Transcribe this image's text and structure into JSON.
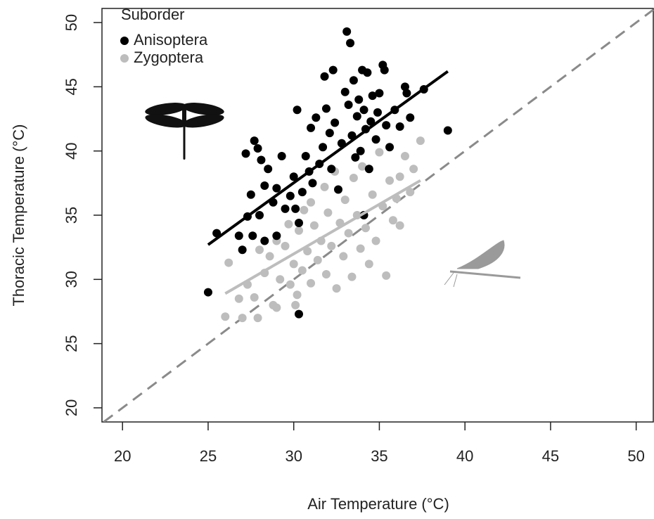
{
  "chart_data": {
    "type": "scatter",
    "x_label": "Air Temperature (°C)",
    "y_label": "Thoracic Temperature (°C)",
    "legend_title": "Suborder",
    "legend": "top-left",
    "xlim": [
      18.8,
      51
    ],
    "ylim": [
      18.9,
      51.1
    ],
    "xticks": [
      20,
      25,
      30,
      35,
      40,
      45,
      50
    ],
    "yticks": [
      20,
      25,
      30,
      35,
      40,
      45,
      50
    ],
    "identity_line": {
      "color": "#8a8a8a",
      "dash": true
    },
    "series": [
      {
        "name": "Anisoptera",
        "color": "#000000",
        "x": [
          25.0,
          25.5,
          26.8,
          27.0,
          27.3,
          27.5,
          27.7,
          27.2,
          27.9,
          28.1,
          28.3,
          28.5,
          27.6,
          28.0,
          28.3,
          28.8,
          29.0,
          29.3,
          29.5,
          29.8,
          30.0,
          30.2,
          30.3,
          30.5,
          30.7,
          30.9,
          31.1,
          31.0,
          31.3,
          31.5,
          31.7,
          31.8,
          31.9,
          32.1,
          32.3,
          32.2,
          32.4,
          32.6,
          32.8,
          33.0,
          33.1,
          33.3,
          33.2,
          33.4,
          33.5,
          33.6,
          33.7,
          33.8,
          33.9,
          34.0,
          34.1,
          34.2,
          34.3,
          34.4,
          34.5,
          34.6,
          34.8,
          34.9,
          35.0,
          35.2,
          35.3,
          35.4,
          35.6,
          35.9,
          36.2,
          36.5,
          36.6,
          36.8,
          37.6,
          39.0,
          30.3,
          34.1,
          30.1,
          29.0
        ],
        "values": [
          29.0,
          33.6,
          33.4,
          32.3,
          34.9,
          36.6,
          40.8,
          39.8,
          40.2,
          39.3,
          37.3,
          38.6,
          33.4,
          35.0,
          33.0,
          36.0,
          37.1,
          39.6,
          35.5,
          36.5,
          38.0,
          43.2,
          34.4,
          36.8,
          39.6,
          38.4,
          37.5,
          41.8,
          42.6,
          39.0,
          40.3,
          45.8,
          43.3,
          41.4,
          46.3,
          38.6,
          42.2,
          37.0,
          40.6,
          44.6,
          49.3,
          48.4,
          43.6,
          41.2,
          45.5,
          39.5,
          42.7,
          44.0,
          40.0,
          46.3,
          43.2,
          41.7,
          46.1,
          38.6,
          42.3,
          44.3,
          40.9,
          43.0,
          44.5,
          46.7,
          46.3,
          42.0,
          40.3,
          43.2,
          41.9,
          45.0,
          44.5,
          42.6,
          44.8,
          41.6,
          27.3,
          35.0,
          35.5,
          33.4
        ],
        "fit": {
          "x": [
            25,
            39
          ],
          "y": [
            32.7,
            46.2
          ]
        }
      },
      {
        "name": "Zygoptera",
        "color": "#bdbdbd",
        "x": [
          26.0,
          26.2,
          26.8,
          27.0,
          27.3,
          27.7,
          27.9,
          28.0,
          28.3,
          28.6,
          28.8,
          29.0,
          29.2,
          29.5,
          29.8,
          29.7,
          30.0,
          30.2,
          30.3,
          30.5,
          30.6,
          30.8,
          31.0,
          31.0,
          31.2,
          31.4,
          31.6,
          31.8,
          31.9,
          32.0,
          32.2,
          32.4,
          32.5,
          32.7,
          32.9,
          33.0,
          33.2,
          33.4,
          33.5,
          33.7,
          33.9,
          34.0,
          34.2,
          34.4,
          34.6,
          34.8,
          35.0,
          35.2,
          35.4,
          35.6,
          35.8,
          36.0,
          36.2,
          36.5,
          36.8,
          37.4,
          37.0,
          36.2,
          30.1,
          29.0
        ],
        "values": [
          27.1,
          31.3,
          28.5,
          27.0,
          29.6,
          28.6,
          27.0,
          32.3,
          30.5,
          31.8,
          28.0,
          33.0,
          30.0,
          32.6,
          29.6,
          34.3,
          31.2,
          28.8,
          33.8,
          30.7,
          35.4,
          32.2,
          29.7,
          36.0,
          34.2,
          31.5,
          33.0,
          37.2,
          30.4,
          35.2,
          32.6,
          38.4,
          29.3,
          34.4,
          31.8,
          36.2,
          33.6,
          30.2,
          37.9,
          35.0,
          32.4,
          38.8,
          34.0,
          31.2,
          36.6,
          33.0,
          39.9,
          35.7,
          30.3,
          37.7,
          34.6,
          36.3,
          38.0,
          39.6,
          36.8,
          40.8,
          38.6,
          34.2,
          28.0,
          27.8
        ],
        "fit": {
          "x": [
            26,
            37.4
          ],
          "y": [
            28.9,
            37.7
          ]
        }
      }
    ]
  }
}
